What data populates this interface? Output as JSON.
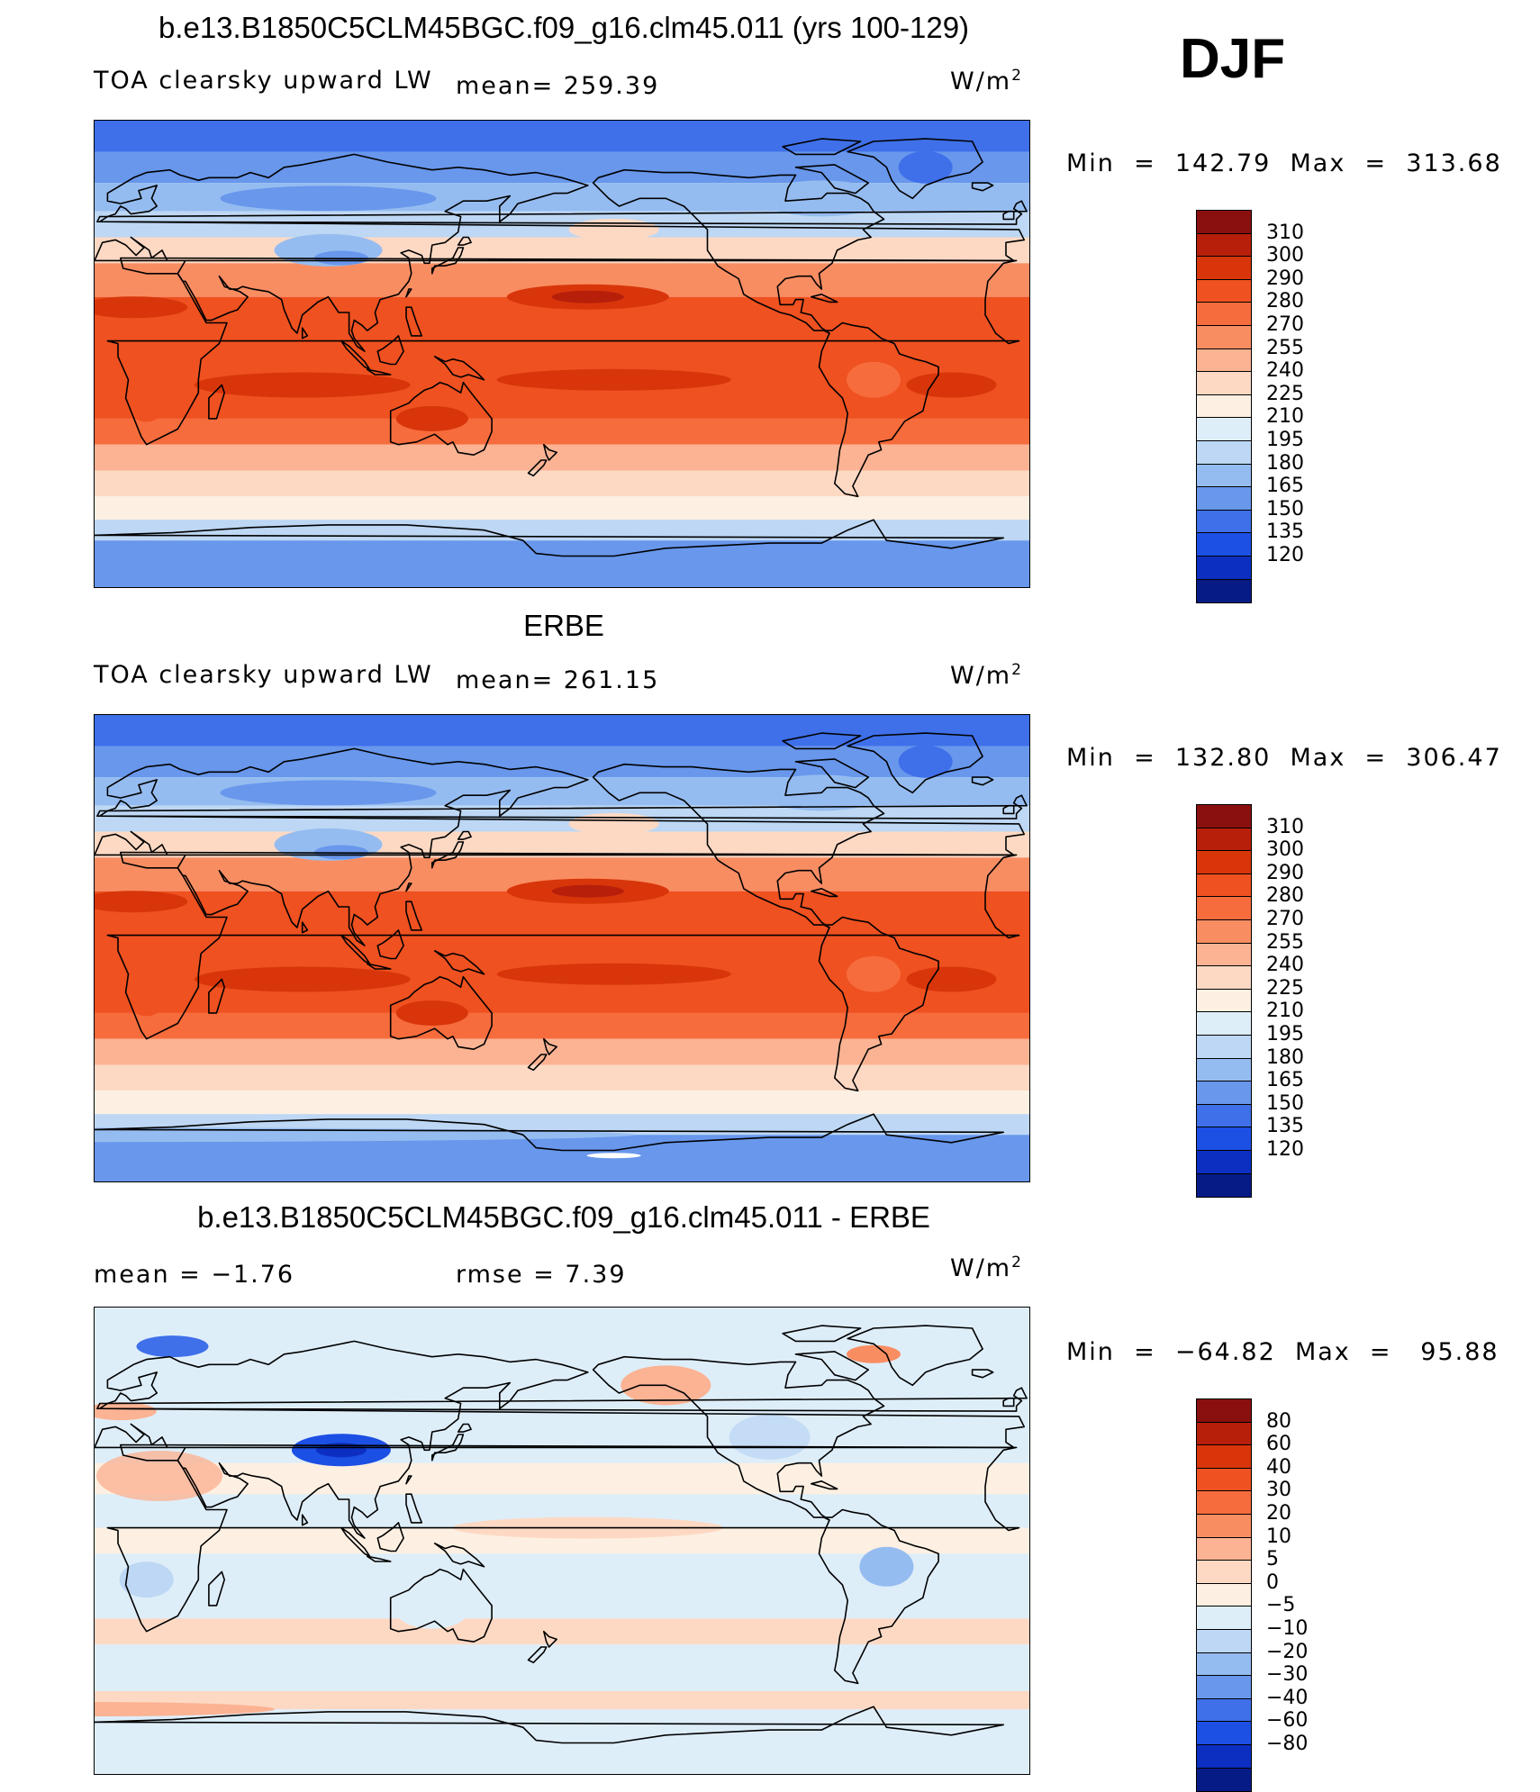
{
  "season": "DJF",
  "units": {
    "base": "W/m",
    "exp": "2"
  },
  "panels": [
    {
      "title": "b.e13.B1850C5CLM45BGC.f09_g16.clm45.011 (yrs 100-129)",
      "left_label": "TOA clearsky upward LW",
      "center_label": "mean= 259.39",
      "minmax": "Min  =  142.79  Max  =  313.68",
      "pattern": "model",
      "colorbar": {
        "labels": [
          "310",
          "300",
          "290",
          "280",
          "270",
          "255",
          "240",
          "225",
          "210",
          "195",
          "180",
          "165",
          "150",
          "135",
          "120"
        ],
        "colors": [
          "#8a0f0f",
          "#b81f0a",
          "#d8360a",
          "#ef5120",
          "#f76c3c",
          "#f98d62",
          "#fbb393",
          "#fdd9c4",
          "#fdf0e2",
          "#deeef9",
          "#bdd7f4",
          "#95bcf0",
          "#6897ec",
          "#3f70ea",
          "#1c4fe4",
          "#0c2fc2",
          "#061b86"
        ]
      }
    },
    {
      "title": "ERBE",
      "left_label": "TOA clearsky upward LW",
      "center_label": "mean= 261.15",
      "minmax": "Min  =  132.80  Max  =  306.47",
      "pattern": "obs",
      "colorbar": {
        "labels": [
          "310",
          "300",
          "290",
          "280",
          "270",
          "255",
          "240",
          "225",
          "210",
          "195",
          "180",
          "165",
          "150",
          "135",
          "120"
        ],
        "colors": [
          "#8a0f0f",
          "#b81f0a",
          "#d8360a",
          "#ef5120",
          "#f76c3c",
          "#f98d62",
          "#fbb393",
          "#fdd9c4",
          "#fdf0e2",
          "#deeef9",
          "#bdd7f4",
          "#95bcf0",
          "#6897ec",
          "#3f70ea",
          "#1c4fe4",
          "#0c2fc2",
          "#061b86"
        ]
      }
    },
    {
      "title": "b.e13.B1850C5CLM45BGC.f09_g16.clm45.011 - ERBE",
      "left_label": "mean =   −1.76",
      "center_label": "rmse =    7.39",
      "minmax": "Min  =  −64.82  Max  =   95.88",
      "pattern": "diff",
      "colorbar": {
        "labels": [
          "80",
          "60",
          "40",
          "30",
          "20",
          "10",
          "5",
          "0",
          "−5",
          "−10",
          "−20",
          "−30",
          "−40",
          "−60",
          "−80"
        ],
        "colors": [
          "#8a0f0f",
          "#b81f0a",
          "#d8360a",
          "#ef5120",
          "#f76c3c",
          "#f98d62",
          "#fbb393",
          "#fdd9c4",
          "#fdf0e2",
          "#deeef9",
          "#bdd7f4",
          "#95bcf0",
          "#6897ec",
          "#3f70ea",
          "#1c4fe4",
          "#0c2fc2",
          "#061b86"
        ]
      }
    }
  ]
}
